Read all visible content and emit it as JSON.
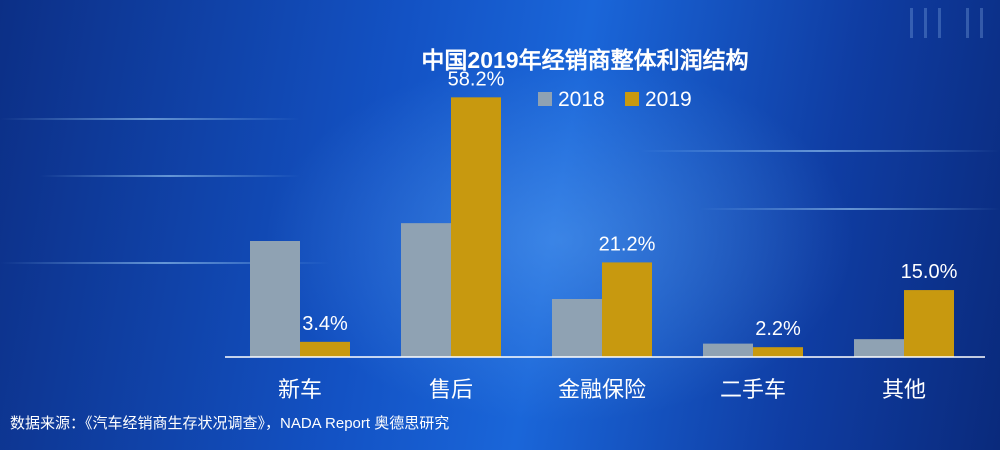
{
  "chart_data": {
    "type": "bar",
    "title": "中国2019年经销商整体利润结构",
    "categories": [
      "新车",
      "售后",
      "金融保险",
      "二手车",
      "其他"
    ],
    "series": [
      {
        "name": "2018",
        "values": [
          26.0,
          30.0,
          13.0,
          3.0,
          4.0
        ],
        "color": "#8fa2b3"
      },
      {
        "name": "2019",
        "values": [
          3.4,
          58.2,
          21.2,
          2.2,
          15.0
        ],
        "color": "#c8990f"
      }
    ],
    "data_labels": [
      "3.4%",
      "58.2%",
      "21.2%",
      "2.2%",
      "15.0%"
    ],
    "ylim": [
      0,
      65
    ],
    "grid": false,
    "legend_position": "top-center",
    "xlabel": "",
    "ylabel": ""
  },
  "source_note": "数据来源：《汽车经销商生存状况调查》，NADA Report  奥德思研究",
  "colors": {
    "axis": "#ffffff"
  }
}
